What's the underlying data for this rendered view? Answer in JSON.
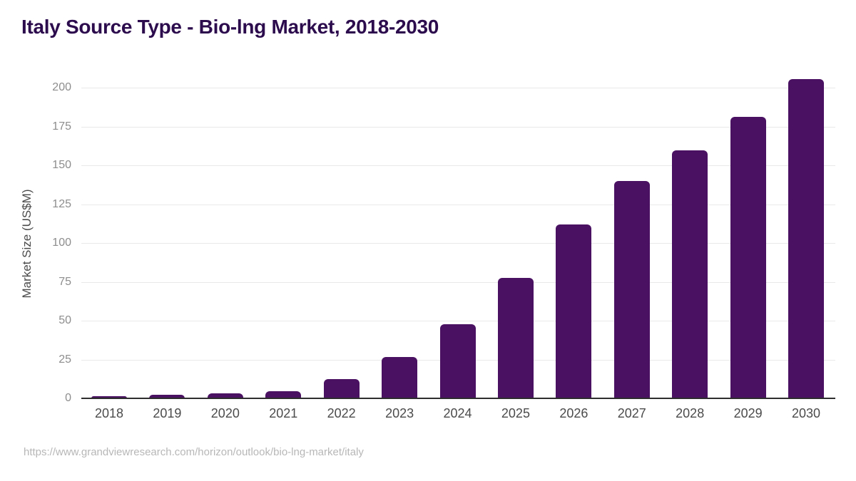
{
  "header": {
    "title": "Italy Source Type - Bio-lng Market, 2018-2030"
  },
  "chart_data": {
    "type": "bar",
    "title": "Italy Source Type - Bio-lng Market, 2018-2030",
    "categories": [
      "2018",
      "2019",
      "2020",
      "2021",
      "2022",
      "2023",
      "2024",
      "2025",
      "2026",
      "2027",
      "2028",
      "2029",
      "2030"
    ],
    "values": [
      1.5,
      2.4,
      3.3,
      4.4,
      12.3,
      26.7,
      47.5,
      77.5,
      111.9,
      139.7,
      159.7,
      181.3,
      205.4
    ],
    "xlabel": "",
    "ylabel": "Market Size (US$M)",
    "ylim": [
      0,
      200
    ],
    "yticks": [
      0,
      25,
      50,
      75,
      100,
      125,
      150,
      175,
      200
    ],
    "grid": "horizontal",
    "legend": "none"
  },
  "footer": {
    "source_url": "https://www.grandviewresearch.com/horizon/outlook/bio-lng-market/italy"
  },
  "colors": {
    "title": "#2d0c4e",
    "bar": "#4a1061",
    "gridline": "#e9e9e9",
    "axis_line": "#2e2e2e",
    "y_tick_label": "#8d8d8d",
    "x_tick_label": "#4b4b4b",
    "y_axis_title": "#4b4b4b",
    "source_url": "#b7b7b7"
  }
}
